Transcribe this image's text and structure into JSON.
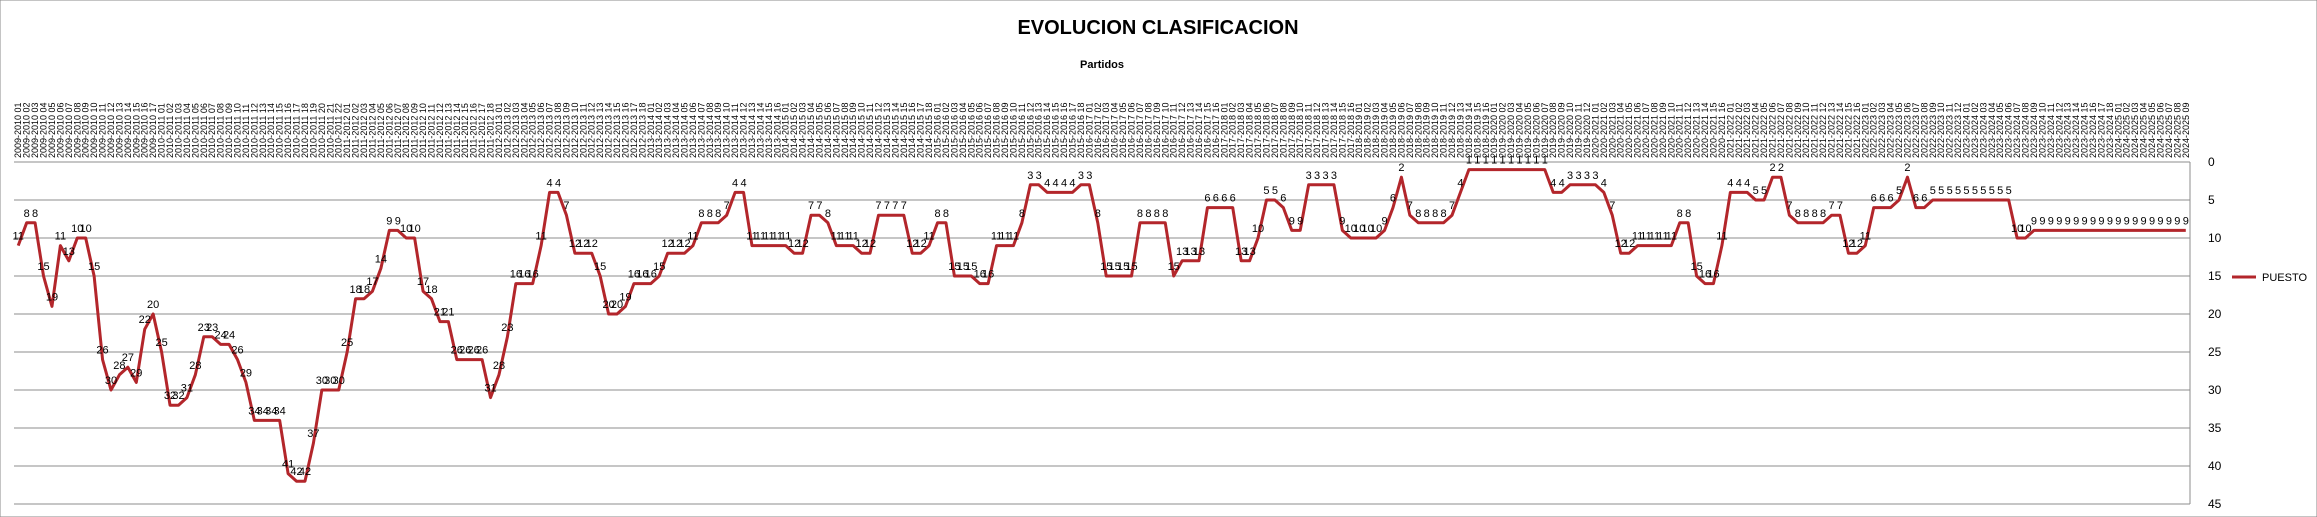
{
  "chart_data": {
    "type": "line",
    "title": "EVOLUCION CLASIFICACION",
    "x_label": "Partidos",
    "categories": [
      "2009-2010 01",
      "2009-2010 02",
      "2009-2010 03",
      "2009-2010 04",
      "2009-2010 05",
      "2009-2010 06",
      "2009-2010 07",
      "2009-2010 08",
      "2009-2010 09",
      "2009-2010 10",
      "2009-2010 11",
      "2009-2010 12",
      "2009-2010 13",
      "2009-2010 14",
      "2009-2010 15",
      "2009-2010 16",
      "2009-2010 17",
      "2010-2011 01",
      "2010-2011 02",
      "2010-2011 03",
      "2010-2011 04",
      "2010-2011 05",
      "2010-2011 06",
      "2010-2011 07",
      "2010-2011 08",
      "2010-2011 09",
      "2010-2011 10",
      "2010-2011 11",
      "2010-2011 12",
      "2010-2011 13",
      "2010-2011 14",
      "2010-2011 15",
      "2010-2011 16",
      "2010-2011 17",
      "2010-2011 18",
      "2010-2011 19",
      "2010-2011 20",
      "2010-2011 21",
      "2010-2011 22",
      "2011-2012 01",
      "2011-2012 02",
      "2011-2012 03",
      "2011-2012 04",
      "2011-2012 05",
      "2011-2012 06",
      "2011-2012 07",
      "2011-2012 08",
      "2011-2012 09",
      "2011-2012 10",
      "2011-2012 11",
      "2011-2012 12",
      "2011-2012 13",
      "2011-2012 14",
      "2011-2012 15",
      "2011-2012 16",
      "2011-2012 17",
      "2011-2012 18",
      "2012-2013 01",
      "2012-2013 02",
      "2012-2013 03",
      "2012-2013 04",
      "2012-2013 05",
      "2012-2013 06",
      "2012-2013 07",
      "2012-2013 08",
      "2012-2013 09",
      "2012-2013 10",
      "2012-2013 11",
      "2012-2013 12",
      "2012-2013 13",
      "2012-2013 14",
      "2012-2013 15",
      "2012-2013 16",
      "2012-2013 17",
      "2012-2013 18",
      "2013-2014 01",
      "2013-2014 02",
      "2013-2014 03",
      "2013-2014 04",
      "2013-2014 05",
      "2013-2014 06",
      "2013-2014 07",
      "2013-2014 08",
      "2013-2014 09",
      "2013-2014 10",
      "2013-2014 11",
      "2013-2014 12",
      "2013-2014 13",
      "2013-2014 14",
      "2013-2014 15",
      "2013-2014 16",
      "2014-2015 01",
      "2014-2015 02",
      "2014-2015 03",
      "2014-2015 04",
      "2014-2015 05",
      "2014-2015 06",
      "2014-2015 07",
      "2014-2015 08",
      "2014-2015 09",
      "2014-2015 10",
      "2014-2015 11",
      "2014-2015 12",
      "2014-2015 13",
      "2014-2015 14",
      "2014-2015 15",
      "2014-2015 16",
      "2014-2015 17",
      "2014-2015 18",
      "2015-2016 01",
      "2015-2016 02",
      "2015-2016 03",
      "2015-2016 04",
      "2015-2016 05",
      "2015-2016 06",
      "2015-2016 07",
      "2015-2016 08",
      "2015-2016 09",
      "2015-2016 10",
      "2015-2016 11",
      "2015-2016 12",
      "2015-2016 13",
      "2015-2016 14",
      "2015-2016 15",
      "2015-2016 16",
      "2015-2016 17",
      "2015-2016 18",
      "2016-2017 01",
      "2016-2017 02",
      "2016-2017 03",
      "2016-2017 04",
      "2016-2017 05",
      "2016-2017 06",
      "2016-2017 07",
      "2016-2017 08",
      "2016-2017 09",
      "2016-2017 10",
      "2016-2017 11",
      "2016-2017 12",
      "2016-2017 13",
      "2016-2017 14",
      "2016-2017 15",
      "2016-2017 16",
      "2017-2018 01",
      "2017-2018 02",
      "2017-2018 03",
      "2017-2018 04",
      "2017-2018 05",
      "2017-2018 06",
      "2017-2018 07",
      "2017-2018 08",
      "2017-2018 09",
      "2017-2018 10",
      "2017-2018 11",
      "2017-2018 12",
      "2017-2018 13",
      "2017-2018 14",
      "2017-2018 15",
      "2017-2018 16",
      "2018-2019 01",
      "2018-2019 02",
      "2018-2019 03",
      "2018-2019 04",
      "2018-2019 05",
      "2018-2019 06",
      "2018-2019 07",
      "2018-2019 08",
      "2018-2019 09",
      "2018-2019 10",
      "2018-2019 11",
      "2018-2019 12",
      "2018-2019 13",
      "2018-2019 14",
      "2018-2019 15",
      "2018-2019 16",
      "2019-2020 01",
      "2019-2020 02",
      "2019-2020 03",
      "2019-2020 04",
      "2019-2020 05",
      "2019-2020 06",
      "2019-2020 07",
      "2019-2020 08",
      "2019-2020 09",
      "2019-2020 10",
      "2019-2020 11",
      "2019-2020 12",
      "2020-2021 01",
      "2020-2021 02",
      "2020-2021 03",
      "2020-2021 04",
      "2020-2021 05",
      "2020-2021 06",
      "2020-2021 07",
      "2020-2021 08",
      "2020-2021 09",
      "2020-2021 10",
      "2020-2021 11",
      "2020-2021 12",
      "2020-2021 13",
      "2020-2021 14",
      "2020-2021 15",
      "2020-2021 16",
      "2021-2022 01",
      "2021-2022 02",
      "2021-2022 03",
      "2021-2022 04",
      "2021-2022 05",
      "2021-2022 06",
      "2021-2022 07",
      "2021-2022 08",
      "2021-2022 09",
      "2021-2022 10",
      "2021-2022 11",
      "2021-2022 12",
      "2021-2022 13",
      "2021-2022 14",
      "2021-2022 15",
      "2021-2022 16",
      "2022-2023 01",
      "2022-2023 02",
      "2022-2023 03",
      "2022-2023 04",
      "2022-2023 05",
      "2022-2023 06",
      "2022-2023 07",
      "2022-2023 08",
      "2022-2023 09",
      "2022-2023 10",
      "2022-2023 11",
      "2022-2023 12",
      "2023-2024 01",
      "2023-2024 02",
      "2023-2024 03",
      "2023-2024 04",
      "2023-2024 05",
      "2023-2024 06",
      "2023-2024 07",
      "2023-2024 08",
      "2023-2024 09",
      "2023-2024 10",
      "2023-2024 11",
      "2023-2024 12",
      "2023-2024 13",
      "2023-2024 14",
      "2023-2024 15",
      "2023-2024 16",
      "2023-2024 17",
      "2023-2024 18",
      "2024-2025 01",
      "2024-2025 02",
      "2024-2025 03",
      "2024-2025 04",
      "2024-2025 05",
      "2024-2025 06",
      "2024-2025 07",
      "2024-2025 08",
      "2024-2025 09"
    ],
    "series": [
      {
        "name": "PUESTO",
        "color": "#b3262b",
        "values": [
          11,
          8,
          8,
          15,
          19,
          11,
          13,
          10,
          10,
          15,
          26,
          30,
          28,
          27,
          29,
          22,
          20,
          25,
          32,
          32,
          31,
          28,
          23,
          23,
          24,
          24,
          26,
          29,
          34,
          34,
          34,
          34,
          41,
          42,
          42,
          37,
          30,
          30,
          30,
          25,
          18,
          18,
          17,
          14,
          9,
          9,
          10,
          10,
          17,
          18,
          21,
          21,
          26,
          26,
          26,
          26,
          31,
          28,
          23,
          16,
          16,
          16,
          11,
          4,
          4,
          7,
          12,
          12,
          12,
          15,
          20,
          20,
          19,
          16,
          16,
          16,
          15,
          12,
          12,
          12,
          11,
          8,
          8,
          8,
          7,
          4,
          4,
          11,
          11,
          11,
          11,
          11,
          12,
          12,
          7,
          7,
          8,
          11,
          11,
          11,
          12,
          12,
          7,
          7,
          7,
          7,
          12,
          12,
          11,
          8,
          8,
          15,
          15,
          15,
          16,
          16,
          11,
          11,
          11,
          8,
          3,
          3,
          4,
          4,
          4,
          4,
          3,
          3,
          8,
          15,
          15,
          15,
          15,
          8,
          8,
          8,
          8,
          15,
          13,
          13,
          13,
          6,
          6,
          6,
          6,
          13,
          13,
          10,
          5,
          5,
          6,
          9,
          9,
          3,
          3,
          3,
          3,
          9,
          10,
          10,
          10,
          10,
          9,
          6,
          2,
          7,
          8,
          8,
          8,
          8,
          7,
          4,
          1,
          1,
          1,
          1,
          1,
          1,
          1,
          1,
          1,
          1,
          4,
          4,
          3,
          3,
          3,
          3,
          4,
          7,
          12,
          12,
          11,
          11,
          11,
          11,
          11,
          8,
          8,
          15,
          16,
          16,
          11,
          4,
          4,
          4,
          5,
          5,
          2,
          2,
          7,
          8,
          8,
          8,
          8,
          7,
          7,
          12,
          12,
          11,
          6,
          6,
          6,
          5,
          2,
          6,
          6,
          5,
          5,
          5,
          5,
          5,
          5,
          5,
          5,
          5,
          5,
          10,
          10,
          9,
          9,
          9,
          9,
          9,
          9,
          9,
          9,
          9,
          9,
          9,
          9,
          9,
          9,
          9,
          9,
          9,
          9,
          9
        ]
      }
    ],
    "ylim": [
      45,
      0
    ],
    "yticks": [
      0,
      5,
      10,
      15,
      20,
      25,
      30,
      35,
      40,
      45
    ],
    "grid": true,
    "legend": "right",
    "data_labels": true
  }
}
